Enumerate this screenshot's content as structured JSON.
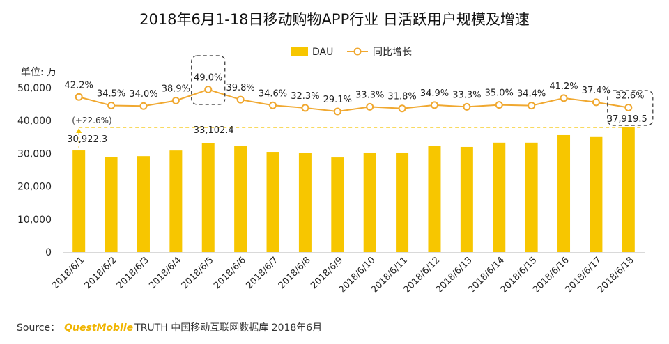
{
  "title": "2018年6月1-18日移动购物APP行业 日活跃用户规模及增速",
  "unit_label": "单位: 万",
  "source": {
    "label": "Source：",
    "brand": "QuestMobile",
    "text": "TRUTH 中国移动互联网数据库 2018年6月"
  },
  "colors": {
    "bar": "#f7c600",
    "line": "#f0a830",
    "dash": "#f5c400",
    "box": "#333333"
  },
  "chart_data": {
    "type": "bar+line",
    "categories": [
      "2018/6/1",
      "2018/6/2",
      "2018/6/3",
      "2018/6/4",
      "2018/6/5",
      "2018/6/6",
      "2018/6/7",
      "2018/6/8",
      "2018/6/9",
      "2018/6/10",
      "2018/6/11",
      "2018/6/12",
      "2018/6/13",
      "2018/6/14",
      "2018/6/15",
      "2018/6/16",
      "2018/6/17",
      "2018/6/18"
    ],
    "series": [
      {
        "name": "DAU",
        "type": "bar",
        "values": [
          30922.3,
          29000,
          29200,
          30900,
          33102.4,
          32200,
          30500,
          30100,
          28800,
          30300,
          30300,
          32400,
          32000,
          33300,
          33300,
          35600,
          35000,
          37919.5
        ]
      },
      {
        "name": "同比增长",
        "type": "line",
        "values": [
          42.2,
          34.5,
          34.0,
          38.9,
          49.0,
          39.8,
          34.6,
          32.3,
          29.1,
          33.3,
          31.8,
          34.9,
          33.3,
          35.0,
          34.4,
          41.2,
          37.4,
          32.6
        ],
        "labels": [
          "42.2%",
          "34.5%",
          "34.0%",
          "38.9%",
          "49.0%",
          "39.8%",
          "34.6%",
          "32.3%",
          "29.1%",
          "33.3%",
          "31.8%",
          "34.9%",
          "33.3%",
          "35.0%",
          "34.4%",
          "41.2%",
          "37.4%",
          "32.6%"
        ]
      }
    ],
    "yaxis": {
      "ylim": [
        0,
        50000
      ],
      "ticks": [
        0,
        10000,
        20000,
        30000,
        40000,
        50000
      ],
      "tick_labels": [
        "0",
        "10,000",
        "20,000",
        "30,000",
        "40,000",
        "50,000"
      ]
    },
    "bar_labels": {
      "first": "30,922.3",
      "peak": "33,102.4",
      "last": "37,919.5"
    },
    "growth_annotation": "(+22.6%)",
    "legend": {
      "position": "top-center",
      "items": [
        "DAU",
        "同比增长"
      ]
    },
    "highlighted": [
      "2018/6/5",
      "2018/6/18"
    ]
  }
}
